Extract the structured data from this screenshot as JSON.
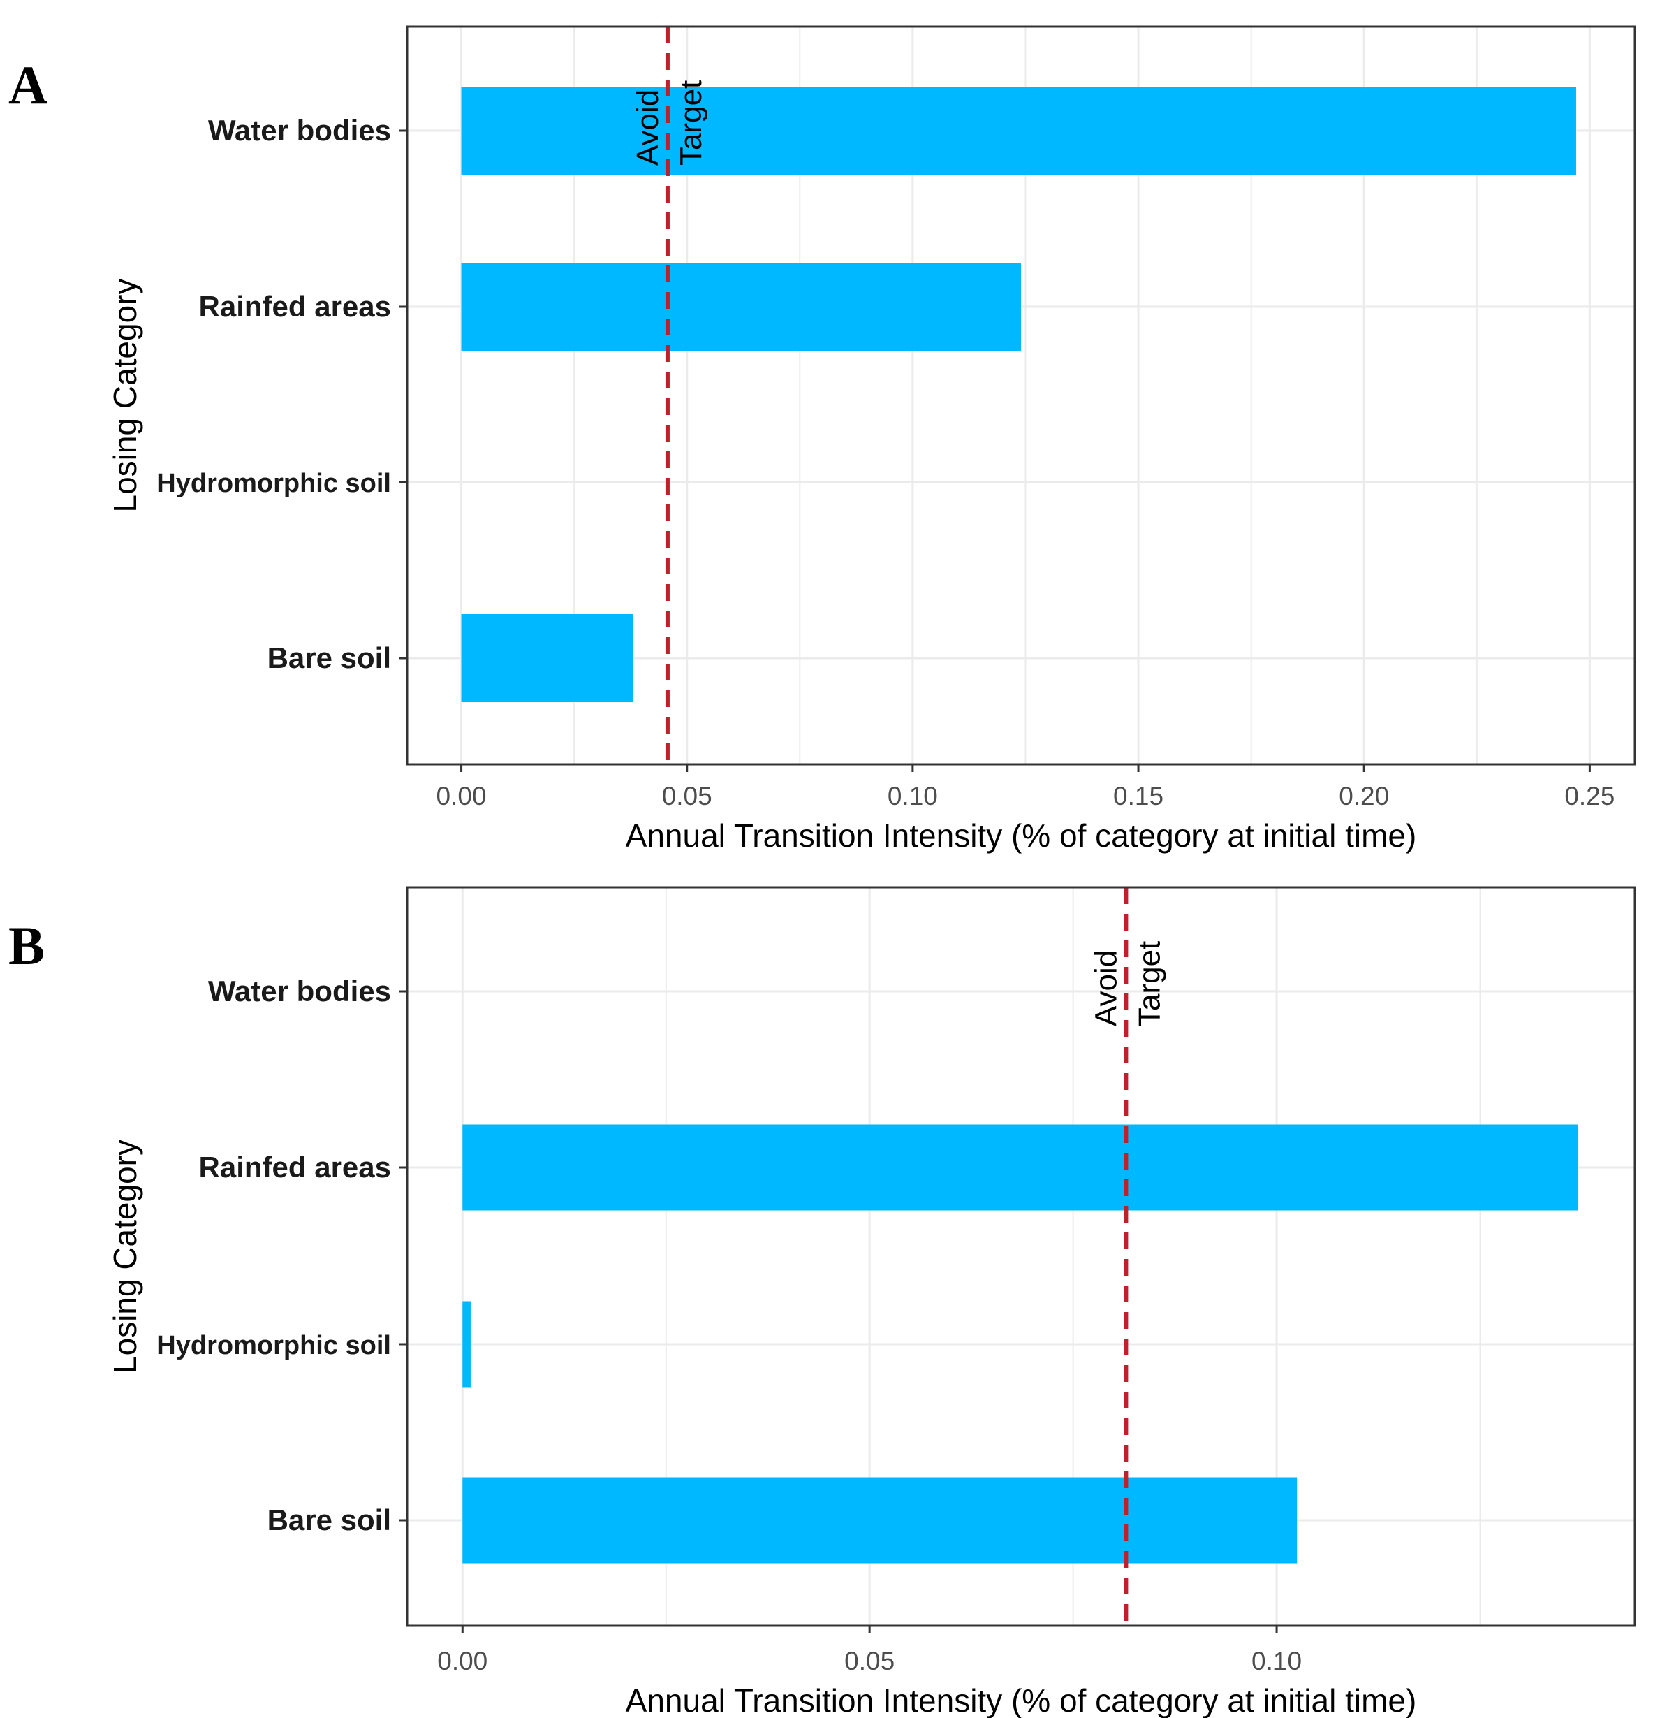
{
  "figure": {
    "background": "#ffffff",
    "bar_color": "#00B8FF",
    "reference_line_color": "#C0202A",
    "grid_color": "#EBEBEB"
  },
  "chart_data": [
    {
      "type": "bar",
      "orientation": "horizontal",
      "panel": "A",
      "categories": [
        "Water bodies",
        "Rainfed areas",
        "Hydromorphic soil",
        "Bare soil"
      ],
      "values": [
        0.247,
        0.124,
        0.0,
        0.038
      ],
      "xlabel": "Annual Transition Intensity (% of category at initial time)",
      "ylabel": "Losing Category",
      "xlim": [
        -0.012,
        0.26
      ],
      "xticks": [
        0.0,
        0.05,
        0.1,
        0.15,
        0.2,
        0.25
      ],
      "xtick_labels": [
        "0.00",
        "0.05",
        "0.10",
        "0.15",
        "0.20",
        "0.25"
      ],
      "minor_gridlines": [
        0.025,
        0.075,
        0.125,
        0.175,
        0.225
      ],
      "reference_line": {
        "value": 0.0457,
        "style": "dashed",
        "label_left": "Avoid",
        "label_right": "Target"
      },
      "grid": true
    },
    {
      "type": "bar",
      "orientation": "horizontal",
      "panel": "B",
      "categories": [
        "Water bodies",
        "Rainfed areas",
        "Hydromorphic soil",
        "Bare soil"
      ],
      "values": [
        0.0,
        0.137,
        0.001,
        0.1025
      ],
      "xlabel": "Annual Transition Intensity (% of category at initial time)",
      "ylabel": "Losing Category",
      "xlim": [
        -0.0068,
        0.144
      ],
      "xticks": [
        0.0,
        0.05,
        0.1
      ],
      "xtick_labels": [
        "0.00",
        "0.05",
        "0.10"
      ],
      "minor_gridlines": [
        0.025,
        0.075,
        0.125
      ],
      "reference_line": {
        "value": 0.0815,
        "style": "dashed",
        "label_left": "Avoid",
        "label_right": "Target"
      },
      "grid": true
    }
  ]
}
